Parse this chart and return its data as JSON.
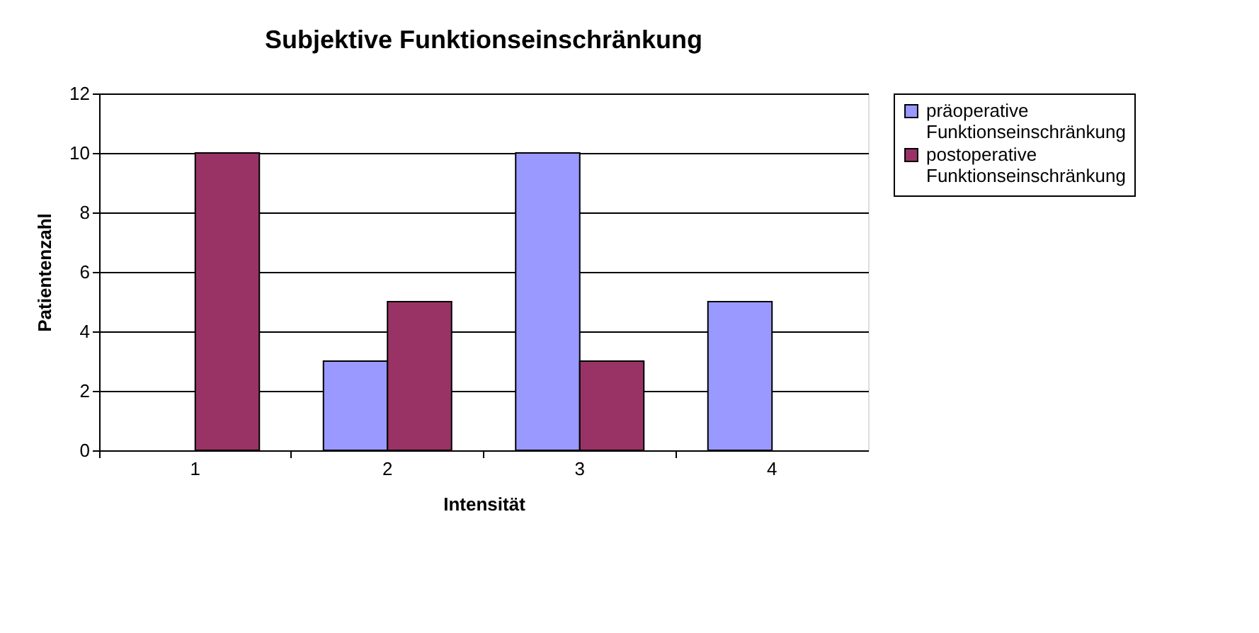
{
  "chart_data": {
    "type": "bar",
    "title": "Subjektive Funktionseinschränkung",
    "xlabel": "Intensität",
    "ylabel": "Patientenzahl",
    "categories": [
      "1",
      "2",
      "3",
      "4"
    ],
    "series": [
      {
        "name": "präoperative Funktionseinschränkung",
        "color": "#9999ff",
        "values": [
          0,
          3,
          10,
          5
        ]
      },
      {
        "name": "postoperative Funktionseinschränkung",
        "color": "#993366",
        "values": [
          10,
          5,
          3,
          0
        ]
      }
    ],
    "ylim": [
      0,
      12
    ],
    "yticks": [
      0,
      2,
      4,
      6,
      8,
      10,
      12
    ],
    "grid": "y",
    "legend": "right"
  }
}
